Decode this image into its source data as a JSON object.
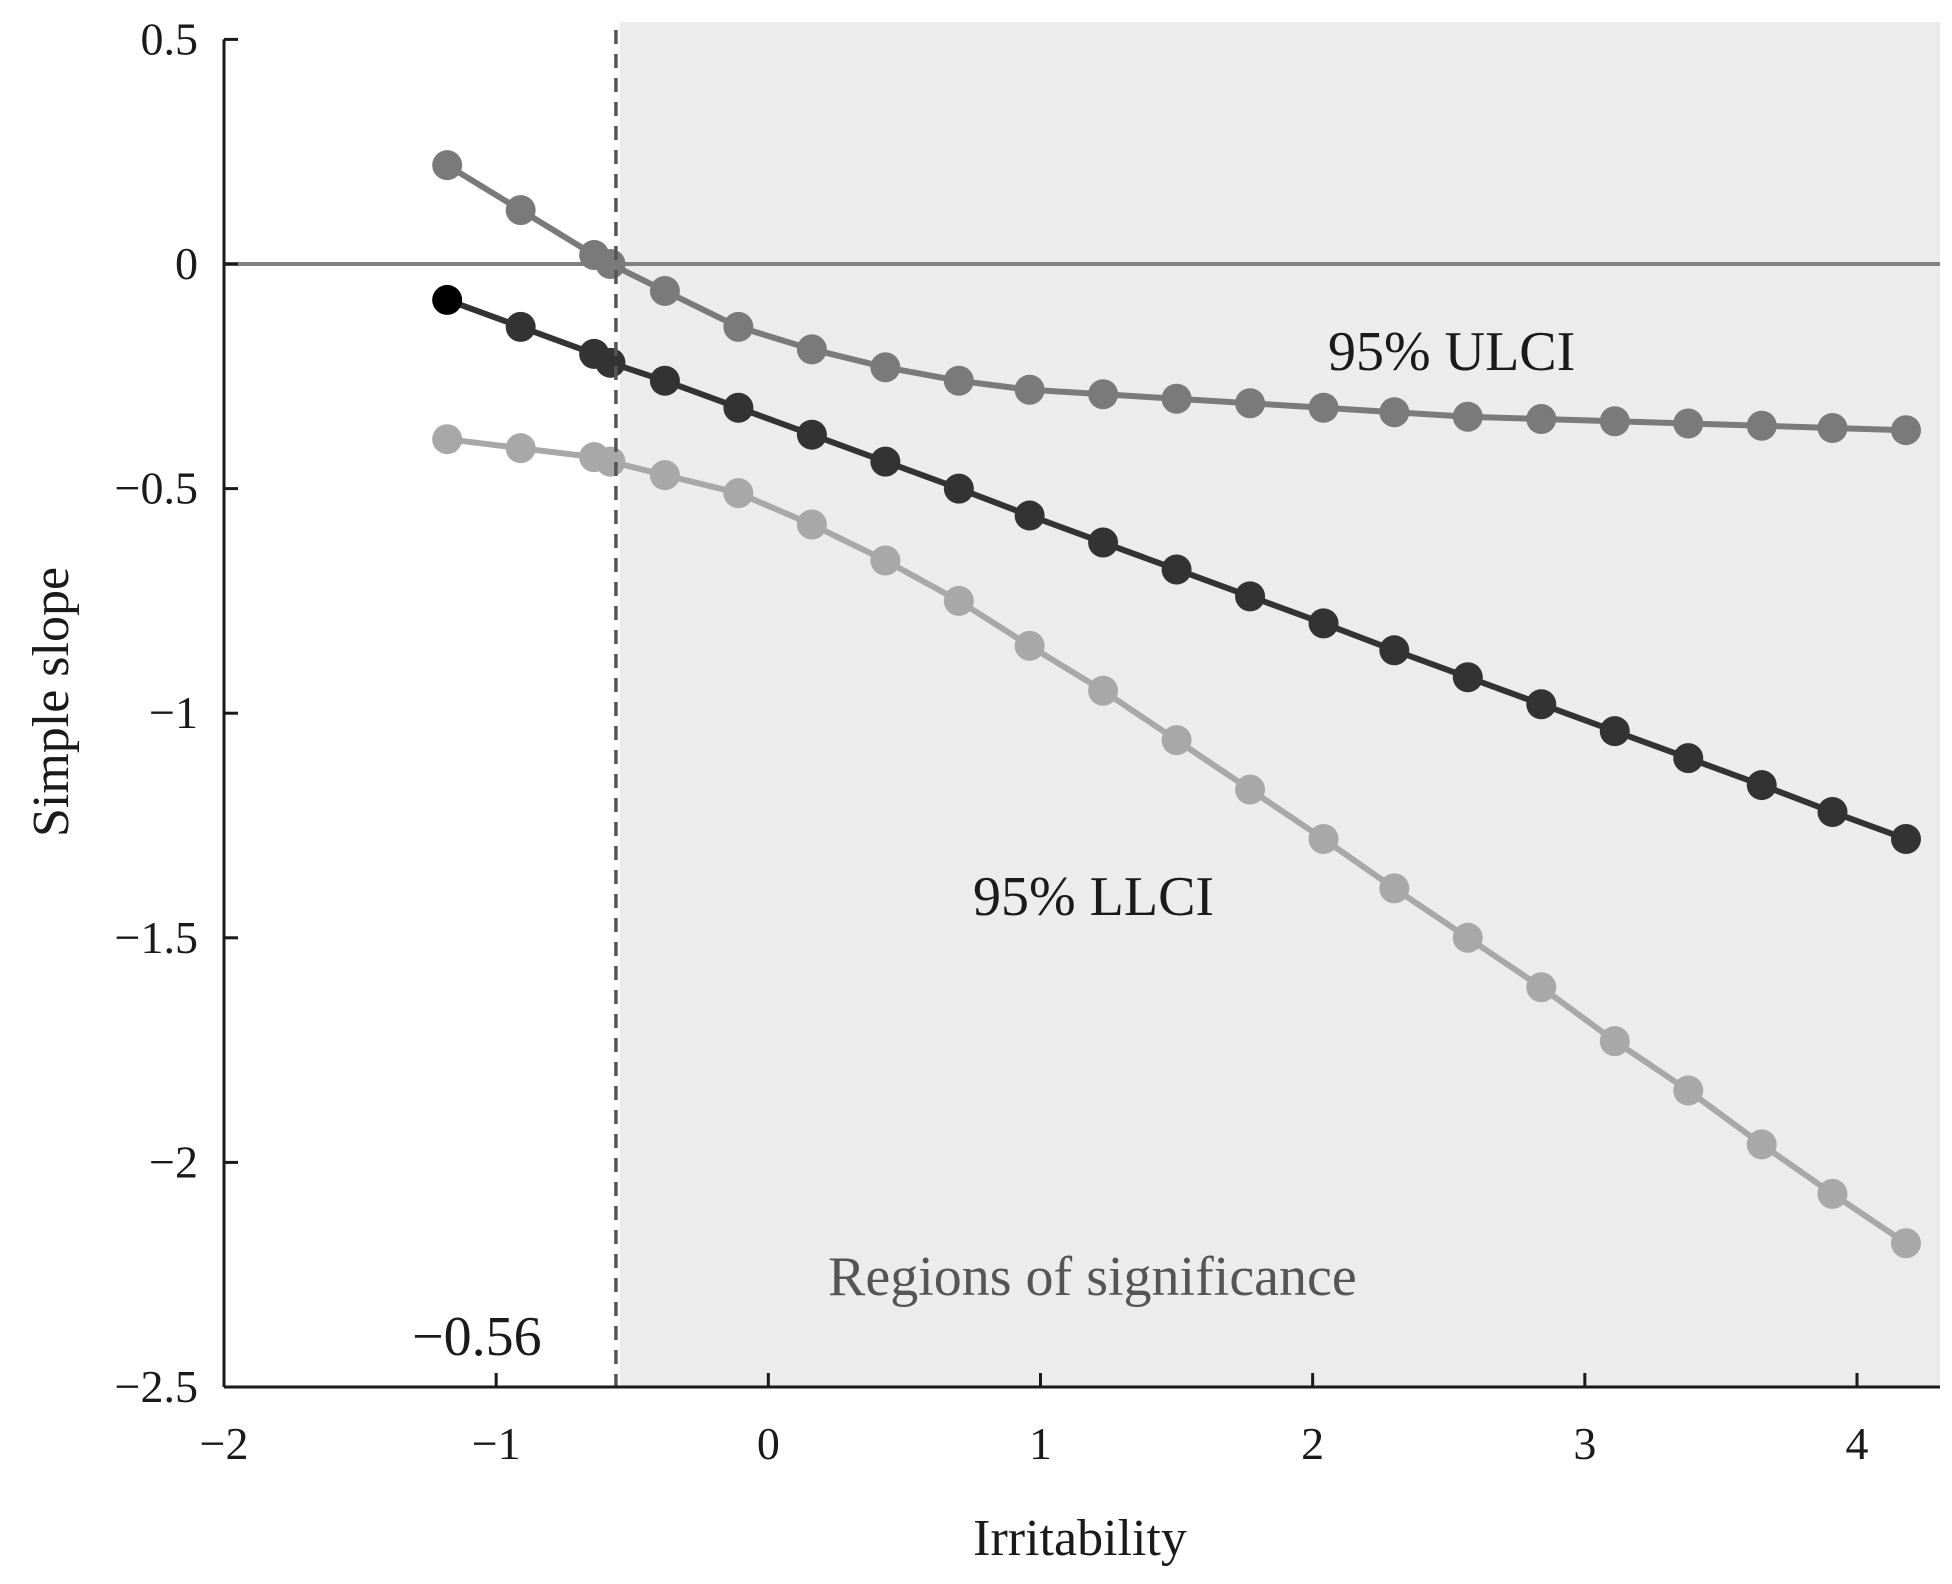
{
  "chart_data": {
    "type": "line",
    "title": "",
    "xlabel": "Irritability",
    "ylabel": "Simple slope",
    "xlim": [
      -2,
      4.3
    ],
    "ylim": [
      -2.5,
      0.5
    ],
    "x_ticks": [
      -2,
      -1,
      0,
      1,
      2,
      3,
      4
    ],
    "y_ticks": [
      0.5,
      0,
      -0.5,
      -1,
      -1.5,
      -2,
      -2.5
    ],
    "x_tick_labels": [
      "−2",
      "−1",
      "0",
      "1",
      "2",
      "3",
      "4"
    ],
    "y_tick_labels": [
      "0.5",
      "0",
      "−0.5",
      "−1",
      "−1.5",
      "−2",
      "−2.5"
    ],
    "grid": false,
    "reference_line_y": 0,
    "threshold_x": -0.56,
    "threshold_label": "−0.56",
    "significance_region": {
      "x_from": -0.56,
      "x_to": 4.3,
      "label": "Regions of significance"
    },
    "x": [
      -1.18,
      -0.91,
      -0.64,
      -0.58,
      -0.38,
      -0.11,
      0.16,
      0.43,
      0.7,
      0.96,
      1.23,
      1.5,
      1.77,
      2.04,
      2.3,
      2.57,
      2.84,
      3.11,
      3.38,
      3.65,
      3.91,
      4.18
    ],
    "series": [
      {
        "name": "95% ULCI",
        "color": "#7a7a7a",
        "values": [
          0.22,
          0.12,
          0.02,
          0.0,
          -0.06,
          -0.14,
          -0.19,
          -0.23,
          -0.26,
          -0.28,
          -0.29,
          -0.3,
          -0.31,
          -0.32,
          -0.33,
          -0.34,
          -0.345,
          -0.35,
          -0.355,
          -0.36,
          -0.365,
          -0.37
        ]
      },
      {
        "name": "Simple slope",
        "color": "#333333",
        "values": [
          -0.08,
          -0.14,
          -0.2,
          -0.22,
          -0.26,
          -0.32,
          -0.38,
          -0.44,
          -0.5,
          -0.56,
          -0.62,
          -0.68,
          -0.74,
          -0.8,
          -0.86,
          -0.92,
          -0.98,
          -1.04,
          -1.1,
          -1.16,
          -1.22,
          -1.28
        ]
      },
      {
        "name": "95% LLCI",
        "color": "#a8a8a8",
        "values": [
          -0.39,
          -0.41,
          -0.43,
          -0.44,
          -0.47,
          -0.51,
          -0.58,
          -0.66,
          -0.75,
          -0.85,
          -0.95,
          -1.06,
          -1.17,
          -1.28,
          -1.39,
          -1.5,
          -1.61,
          -1.73,
          -1.84,
          -1.96,
          -2.07,
          -2.18
        ]
      }
    ],
    "annotations": {
      "ulci": "95% ULCI",
      "llci": "95% LLCI"
    }
  }
}
